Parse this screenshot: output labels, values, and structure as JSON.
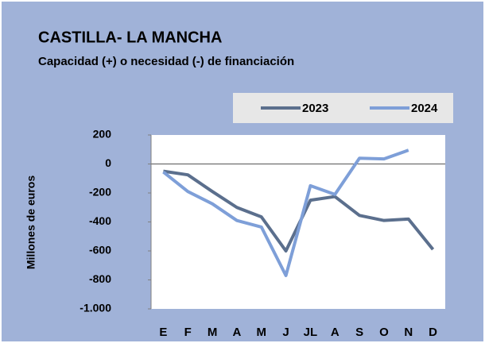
{
  "chart_data": {
    "type": "line",
    "title": "CASTILLA- LA MANCHA",
    "subtitle": "Capacidad (+) o necesidad (-) de financiación",
    "y_label": "Millones de euros",
    "categories": [
      "E",
      "F",
      "M",
      "A",
      "M",
      "J",
      "JL",
      "A",
      "S",
      "O",
      "N",
      "D"
    ],
    "series": [
      {
        "name": "2023",
        "color": "#5b6f8d",
        "values": [
          -50,
          -75,
          -190,
          -300,
          -365,
          -600,
          -250,
          -225,
          -355,
          -390,
          -380,
          -590
        ]
      },
      {
        "name": "2024",
        "color": "#7e9fd8",
        "values": [
          -55,
          -190,
          -275,
          -390,
          -435,
          -770,
          -150,
          -210,
          40,
          35,
          95,
          null
        ]
      }
    ],
    "ylim": [
      -1000,
      200
    ],
    "yticks": [
      200,
      0,
      -200,
      -400,
      -600,
      -800,
      {
        "value": -1000,
        "label": "-1.000"
      }
    ],
    "legend": "top"
  }
}
